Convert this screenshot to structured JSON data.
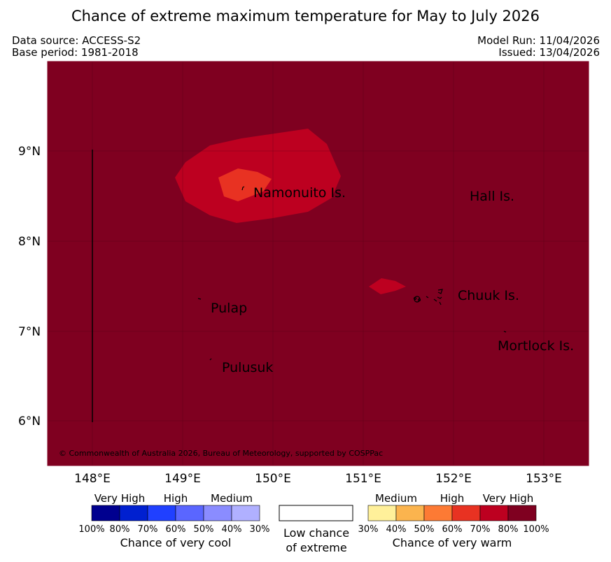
{
  "header": {
    "title": "Chance of extreme maximum temperature for May to July 2026",
    "data_source": "Data source: ACCESS-S2",
    "base_period": "Base period: 1981-2018",
    "model_run": "Model Run: 11/04/2026",
    "issued": "Issued: 13/04/2026"
  },
  "map": {
    "background_color": "#7f0020",
    "lat_labels": [
      "9°N",
      "8°N",
      "7°N",
      "6°N"
    ],
    "lon_labels": [
      "148°E",
      "149°E",
      "150°E",
      "151°E",
      "152°E",
      "153°E"
    ],
    "places": {
      "namonuito": "Namonuito Is.",
      "hall": "Hall Is.",
      "pulap": "Pulap",
      "chuuk": "Chuuk Is.",
      "mortlock": "Mortlock Is.",
      "pulusuk": "Pulusuk"
    },
    "copyright": "© Commonwealth of Australia 2026, Bureau of Meteorology, supported by COSPPac"
  },
  "legend": {
    "cool": {
      "headers": [
        "Very High",
        "High",
        "Medium"
      ],
      "ticks": [
        "100%",
        "80%",
        "70%",
        "60%",
        "50%",
        "40%",
        "30%"
      ],
      "colors": [
        "#00008f",
        "#0020d0",
        "#2040ff",
        "#5a66ff",
        "#8a8cff",
        "#b0b0ff"
      ],
      "caption": "Chance of very cool"
    },
    "neutral": {
      "caption_line1": "Low chance",
      "caption_line2": "of extreme"
    },
    "warm": {
      "headers": [
        "Medium",
        "High",
        "Very High"
      ],
      "ticks": [
        "30%",
        "40%",
        "50%",
        "60%",
        "70%",
        "80%",
        "100%"
      ],
      "colors": [
        "#fff09a",
        "#fbb44e",
        "#fd7a34",
        "#e83222",
        "#bd0020",
        "#7f0020"
      ],
      "caption": "Chance of very warm"
    }
  }
}
